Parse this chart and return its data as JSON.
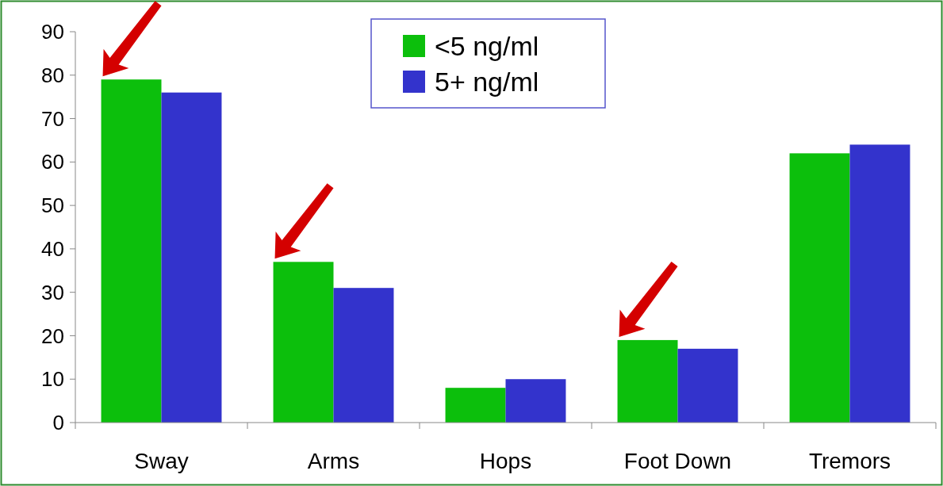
{
  "chart_data": {
    "type": "bar",
    "categories": [
      "Sway",
      "Arms",
      "Hops",
      "Foot Down",
      "Tremors"
    ],
    "series": [
      {
        "name": "<5 ng/ml",
        "color": "#0cbf0c",
        "values": [
          79,
          37,
          8,
          19,
          62
        ]
      },
      {
        "name": "5+ ng/ml",
        "color": "#3333cc",
        "values": [
          76,
          31,
          10,
          17,
          64
        ]
      }
    ],
    "ylim": [
      0,
      90
    ],
    "yticks": [
      0,
      10,
      20,
      30,
      40,
      50,
      60,
      70,
      80,
      90
    ],
    "grid": false,
    "legend": "top"
  }
}
